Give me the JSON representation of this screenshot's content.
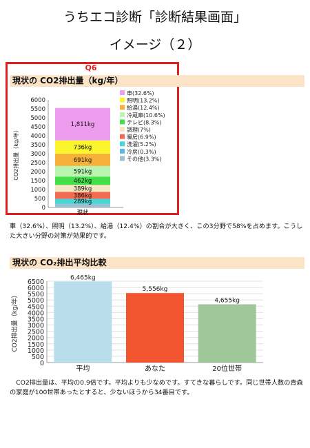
{
  "page": {
    "title_line1": "うちエコ診断「診断結果画面」",
    "title_line2": "イメージ（２）",
    "q_label": "Q6",
    "section1_title": "現状の CO2排出量（kg/年）",
    "section1_text": "車（32.6%）、照明（13.2%）、給湯（12.4%）の割合が大きく、この3分野で58%を占めます。こうした大きい分野の対策が効果的です。",
    "section2_title": "現状の CO₂排出平均比較",
    "section2_text": "　CO2排出量は、平均の0.9倍です。平均よりも少なめです。すてきな暮らしです。同じ世帯人数の青森の家庭が100世帯あったとすると、少ないほうから34番目です。"
  },
  "chart_data": [
    {
      "type": "bar",
      "stacked": true,
      "categories": [
        "現状"
      ],
      "ylabel": "CO2排出量（kg/年）",
      "ylim": [
        0,
        6000
      ],
      "yticks": [
        0,
        500,
        1000,
        1500,
        2000,
        2500,
        3000,
        3500,
        4000,
        4500,
        5000,
        5500,
        6000
      ],
      "grid": false,
      "legend": "right",
      "series": [
        {
          "name": "その他(3.3%)",
          "values": [
            180
          ],
          "color": "#9fbfd0",
          "label": ""
        },
        {
          "name": "冷房(0.3%)",
          "values": [
            16
          ],
          "color": "#5fb8e8",
          "label": ""
        },
        {
          "name": "洗濯(5.2%)",
          "values": [
            289
          ],
          "color": "#4ad6d6",
          "label": "289kg"
        },
        {
          "name": "暖房(6.9%)",
          "values": [
            386
          ],
          "color": "#f26a4f",
          "label": "386kg"
        },
        {
          "name": "調理(7%)",
          "values": [
            389
          ],
          "color": "#f7e6c2",
          "label": "389kg"
        },
        {
          "name": "テレビ(8.3%)",
          "values": [
            462
          ],
          "color": "#44e04a",
          "label": "462kg"
        },
        {
          "name": "冷蔵庫(10.6%)",
          "values": [
            591
          ],
          "color": "#b8f5b0",
          "label": "591kg"
        },
        {
          "name": "給湯(12.4%)",
          "values": [
            691
          ],
          "color": "#f7b13a",
          "label": "691kg"
        },
        {
          "name": "照明(13.2%)",
          "values": [
            736
          ],
          "color": "#fbf52e",
          "label": "736kg"
        },
        {
          "name": "車(32.6%)",
          "values": [
            1811
          ],
          "color": "#ee9cee",
          "label": "1,811kg"
        }
      ]
    },
    {
      "type": "bar",
      "categories": [
        "平均",
        "あなた",
        "20位世帯"
      ],
      "values": [
        6465,
        5556,
        4655
      ],
      "value_labels": [
        "6,465kg",
        "5,556kg",
        "4,655kg"
      ],
      "colors": [
        "#b8deeb",
        "#f25530",
        "#9fc89a"
      ],
      "ylabel": "CO2排出量（kg/年）",
      "ylim": [
        0,
        6500
      ],
      "yticks": [
        0,
        500,
        1000,
        1500,
        2000,
        2500,
        3000,
        3500,
        4000,
        4500,
        5000,
        5500,
        6000,
        6500
      ],
      "grid": true
    }
  ]
}
